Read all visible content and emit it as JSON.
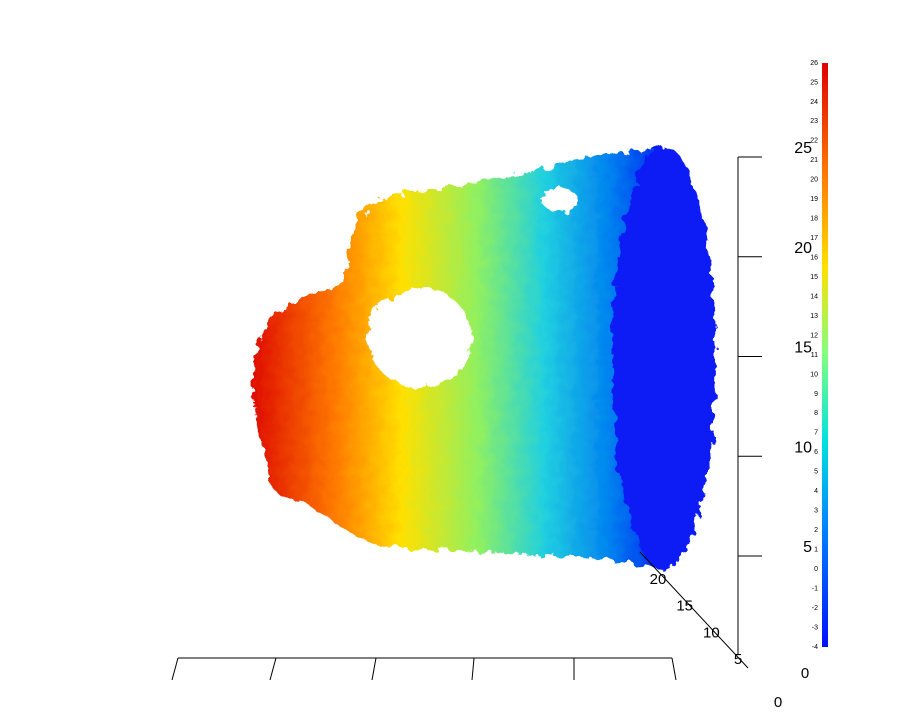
{
  "colorbar": {
    "ticks": [
      -4,
      -3,
      -2,
      -1,
      0,
      1,
      2,
      3,
      4,
      5,
      6,
      7,
      8,
      9,
      10,
      11,
      12,
      13,
      14,
      15,
      16,
      17,
      18,
      19,
      20,
      21,
      22,
      23,
      24,
      25,
      26
    ]
  },
  "vertical_axis": {
    "ticks": [
      5,
      10,
      15,
      20,
      25
    ]
  },
  "depth_axis": {
    "ticks": [
      5,
      10,
      15,
      20
    ]
  },
  "origin_labels": [
    0,
    0
  ]
}
